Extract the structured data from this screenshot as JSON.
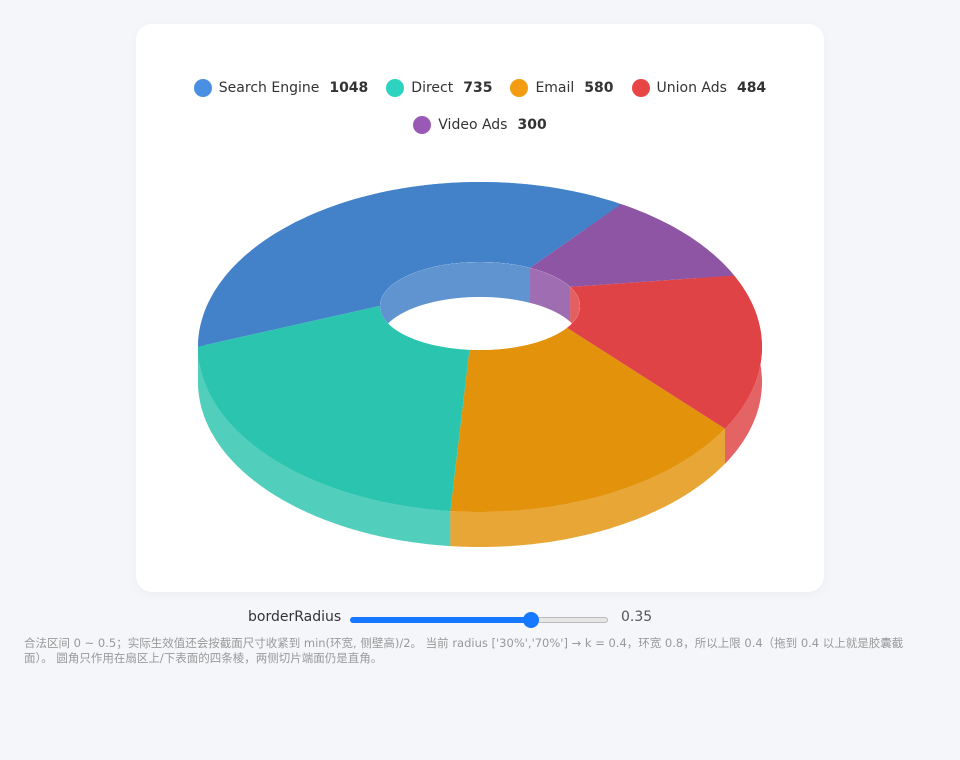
{
  "chart_data": {
    "type": "pie",
    "categories": [
      "Search Engine",
      "Direct",
      "Email",
      "Union Ads",
      "Video Ads"
    ],
    "values": [
      1048,
      735,
      580,
      484,
      300
    ],
    "colors": [
      "#4382c9",
      "#2bc4ae",
      "#e3930b",
      "#df4345",
      "#8f55a5"
    ],
    "legend_colors": [
      "#4a90e2",
      "#2ed3c0",
      "#f39c12",
      "#e84545",
      "#9b59b6"
    ]
  },
  "control": {
    "label": "borderRadius",
    "value": 0.35,
    "range": [
      0,
      0.5
    ]
  },
  "note": "合法区间 0 ~ 0.5；实际生效值还会按截面尺寸收紧到 min(环宽, 侧壁高)/2。 当前 radius ['30%','70%'] → k = 0.4，环宽 0.8，所以上限 0.4（拖到 0.4 以上就是胶囊截面）。 圆角只作用在扇区上/下表面的四条棱，两侧切片端面仍是直角。"
}
